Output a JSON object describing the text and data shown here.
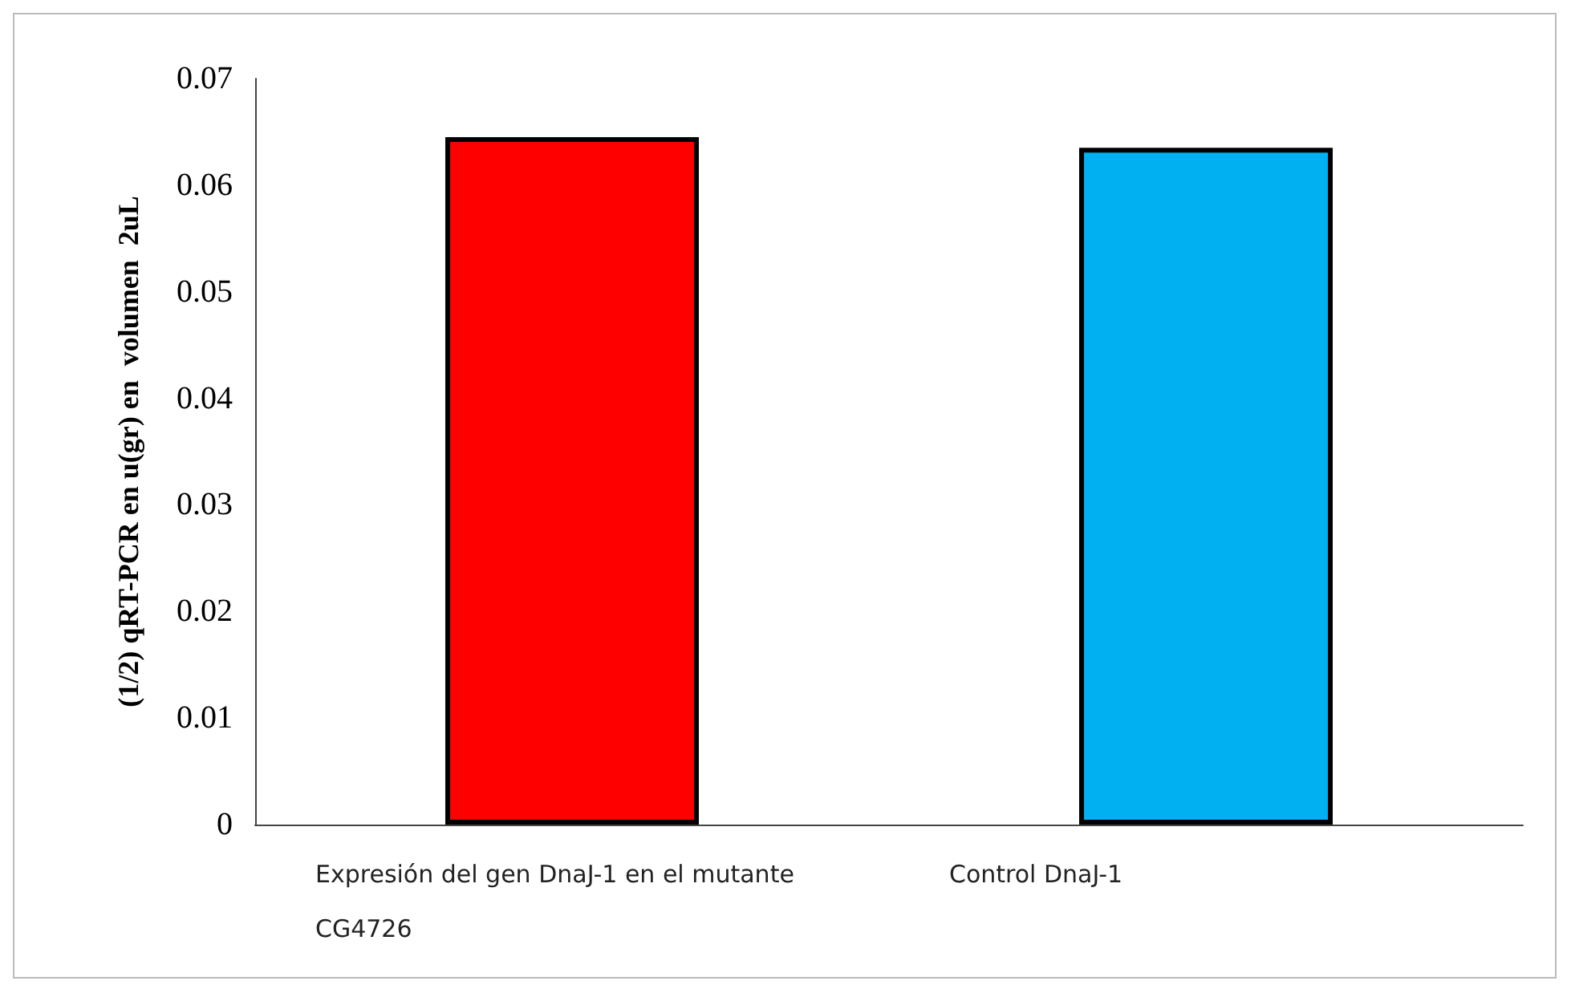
{
  "chart_data": {
    "type": "bar",
    "ylabel": "(1/2) qRT-PCR en u(gr) en  volumen  2uL",
    "categories": [
      "Expresión del gen DnaJ-1 en el mutante CG4726",
      "Control DnaJ-1"
    ],
    "values": [
      0.0645,
      0.0635
    ],
    "colors": [
      "#ff0000",
      "#00b0f0"
    ],
    "ylim": [
      0,
      0.07
    ],
    "yticks": [
      0,
      0.01,
      0.02,
      0.03,
      0.04,
      0.05,
      0.06,
      0.07
    ],
    "grid": false
  }
}
